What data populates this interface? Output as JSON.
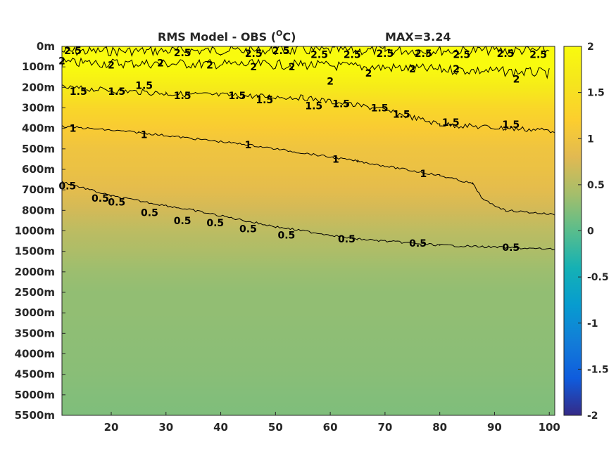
{
  "chart_data": {
    "type": "heatmap",
    "title": "RMS Model - OBS (",
    "title_unit": "O",
    "title_suffix": "C)",
    "annotation": "MAX=3.24",
    "x_ticks": [
      20,
      30,
      40,
      50,
      60,
      70,
      80,
      90,
      100
    ],
    "xlim": [
      11,
      101
    ],
    "y_ticks": [
      "0m",
      "100m",
      "200m",
      "300m",
      "400m",
      "500m",
      "600m",
      "700m",
      "800m",
      "1000m",
      "1500m",
      "2000m",
      "2500m",
      "3000m",
      "3500m",
      "4000m",
      "4500m",
      "5000m",
      "5500m"
    ],
    "colorbar": {
      "range": [
        -2,
        2
      ],
      "ticks": [
        2,
        1.5,
        1,
        0.5,
        0,
        -0.5,
        -1,
        -1.5,
        -2
      ],
      "tick_labels": [
        "2",
        "1.5",
        "1",
        "0.5",
        "0",
        "-0.5",
        "-1",
        "-1.5",
        "-2"
      ],
      "colormap": "parula"
    },
    "depth_profile": [
      {
        "depth": "0m",
        "value": 2.2
      },
      {
        "depth": "100m",
        "value": 2.0
      },
      {
        "depth": "200m",
        "value": 1.7
      },
      {
        "depth": "300m",
        "value": 1.35
      },
      {
        "depth": "400m",
        "value": 1.15
      },
      {
        "depth": "500m",
        "value": 1.0
      },
      {
        "depth": "600m",
        "value": 0.95
      },
      {
        "depth": "700m",
        "value": 0.85
      },
      {
        "depth": "800m",
        "value": 0.7
      },
      {
        "depth": "1000m",
        "value": 0.55
      },
      {
        "depth": "1500m",
        "value": 0.45
      },
      {
        "depth": "2000m",
        "value": 0.35
      },
      {
        "depth": "2500m",
        "value": 0.3
      },
      {
        "depth": "3000m",
        "value": 0.3
      },
      {
        "depth": "3500m",
        "value": 0.28
      },
      {
        "depth": "4000m",
        "value": 0.27
      },
      {
        "depth": "4500m",
        "value": 0.25
      },
      {
        "depth": "5000m",
        "value": 0.22
      },
      {
        "depth": "5500m",
        "value": 0.2
      }
    ],
    "contours": [
      {
        "level": "2.5",
        "points": [
          [
            11,
            0.25
          ],
          [
            40,
            0.2
          ],
          [
            70,
            0.2
          ],
          [
            100,
            0.2
          ]
        ],
        "labels": [
          [
            13,
            0.2
          ],
          [
            33,
            0.3
          ],
          [
            46,
            0.35
          ],
          [
            51,
            0.2
          ],
          [
            58,
            0.4
          ],
          [
            64,
            0.4
          ],
          [
            70,
            0.35
          ],
          [
            77,
            0.35
          ],
          [
            84,
            0.4
          ],
          [
            92,
            0.35
          ],
          [
            98,
            0.4
          ]
        ]
      },
      {
        "level": "2",
        "points": [
          [
            11,
            0.8
          ],
          [
            55,
            0.9
          ],
          [
            100,
            1.3
          ]
        ],
        "labels": [
          [
            11,
            0.7
          ],
          [
            20,
            0.9
          ],
          [
            29,
            0.8
          ],
          [
            38,
            0.9
          ],
          [
            46,
            1.0
          ],
          [
            53,
            1.0
          ],
          [
            60,
            1.7
          ],
          [
            67,
            1.3
          ],
          [
            75,
            1.1
          ],
          [
            83,
            1.1
          ],
          [
            94,
            1.6
          ]
        ]
      },
      {
        "level": "1.5",
        "points": [
          [
            11,
            2.0
          ],
          [
            30,
            2.3
          ],
          [
            55,
            2.5
          ],
          [
            68,
            3.0
          ],
          [
            80,
            3.8
          ],
          [
            92,
            4.0
          ],
          [
            101,
            4.1
          ]
        ],
        "labels": [
          [
            14,
            2.2
          ],
          [
            21,
            2.2
          ],
          [
            26,
            1.9
          ],
          [
            33,
            2.4
          ],
          [
            43,
            2.4
          ],
          [
            48,
            2.6
          ],
          [
            57,
            2.9
          ],
          [
            62,
            2.8
          ],
          [
            69,
            3.0
          ],
          [
            73,
            3.3
          ],
          [
            82,
            3.7
          ],
          [
            93,
            3.8
          ]
        ]
      },
      {
        "level": "1",
        "points": [
          [
            11,
            3.9
          ],
          [
            25,
            4.2
          ],
          [
            45,
            4.8
          ],
          [
            65,
            5.6
          ],
          [
            80,
            6.3
          ],
          [
            86,
            6.7
          ],
          [
            88,
            7.5
          ],
          [
            92,
            8.0
          ],
          [
            101,
            8.2
          ]
        ],
        "labels": [
          [
            13,
            4.0
          ],
          [
            26,
            4.3
          ],
          [
            45,
            4.8
          ],
          [
            61,
            5.5
          ],
          [
            77,
            6.2
          ]
        ]
      },
      {
        "level": "0.5",
        "points": [
          [
            11,
            6.6
          ],
          [
            20,
            7.3
          ],
          [
            35,
            8.0
          ],
          [
            50,
            8.8
          ],
          [
            65,
            9.4
          ],
          [
            80,
            9.7
          ],
          [
            101,
            9.9
          ]
        ],
        "labels": [
          [
            12,
            6.8
          ],
          [
            18,
            7.4
          ],
          [
            21,
            7.6
          ],
          [
            27,
            8.1
          ],
          [
            33,
            8.5
          ],
          [
            39,
            8.6
          ],
          [
            45,
            8.9
          ],
          [
            52,
            9.2
          ],
          [
            63,
            9.4
          ],
          [
            76,
            9.6
          ],
          [
            93,
            9.8
          ]
        ]
      }
    ]
  }
}
